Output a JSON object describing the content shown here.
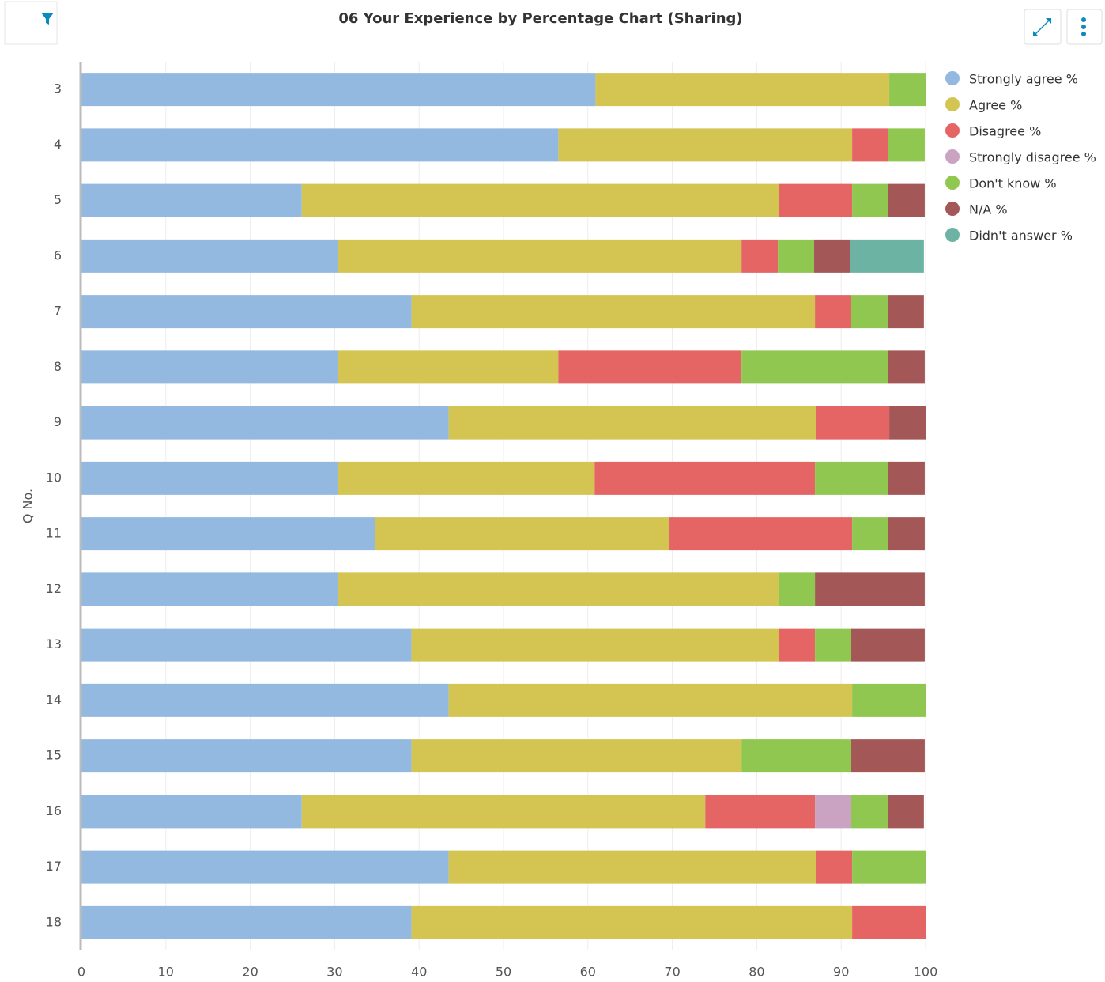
{
  "chart_data": {
    "type": "stacked-barh",
    "title": "06 Your Experience by Percentage Chart (Sharing)",
    "y_label": "Q No.",
    "categories": [
      "3",
      "4",
      "5",
      "6",
      "7",
      "8",
      "9",
      "10",
      "11",
      "12",
      "13",
      "14",
      "15",
      "16",
      "17",
      "18"
    ],
    "series": [
      {
        "name": "Strongly agree %",
        "color": "#94b9e1",
        "values": [
          60.9,
          56.5,
          26.1,
          30.4,
          39.1,
          30.4,
          43.5,
          30.4,
          34.8,
          30.4,
          39.1,
          43.5,
          39.1,
          26.1,
          43.5,
          39.1
        ]
      },
      {
        "name": "Agree %",
        "color": "#d4c452",
        "values": [
          34.8,
          34.8,
          56.5,
          47.8,
          47.8,
          26.1,
          43.5,
          30.4,
          34.8,
          52.2,
          43.5,
          47.8,
          39.1,
          47.8,
          43.5,
          52.2
        ]
      },
      {
        "name": "Disagree %",
        "color": "#e56464",
        "values": [
          null,
          4.3,
          8.7,
          4.3,
          4.3,
          21.7,
          8.7,
          26.1,
          21.7,
          null,
          4.3,
          null,
          null,
          13.0,
          4.3,
          8.7
        ]
      },
      {
        "name": "Strongly disagree %",
        "color": "#c9a3c1",
        "values": [
          null,
          null,
          null,
          null,
          null,
          null,
          null,
          null,
          null,
          null,
          null,
          null,
          null,
          4.3,
          null,
          null
        ]
      },
      {
        "name": "Don't know %",
        "color": "#8fc750",
        "values": [
          4.3,
          4.3,
          4.3,
          4.3,
          4.3,
          17.4,
          null,
          8.7,
          4.3,
          4.3,
          4.3,
          8.7,
          13.0,
          4.3,
          8.7,
          null
        ]
      },
      {
        "name": "N/A %",
        "color": "#a35757",
        "values": [
          null,
          null,
          4.3,
          4.3,
          4.3,
          4.3,
          4.3,
          4.3,
          4.3,
          13.0,
          8.7,
          null,
          8.7,
          4.3,
          null,
          null
        ]
      },
      {
        "name": "Didn't answer %",
        "color": "#6db3a3",
        "values": [
          null,
          null,
          null,
          8.7,
          null,
          null,
          null,
          null,
          null,
          null,
          null,
          null,
          null,
          null,
          null,
          null
        ]
      }
    ],
    "xlim": [
      0,
      100
    ],
    "xticks": [
      0,
      10,
      20,
      30,
      40,
      50,
      60,
      70,
      80,
      90,
      100
    ],
    "grid": true,
    "legend": "right"
  }
}
